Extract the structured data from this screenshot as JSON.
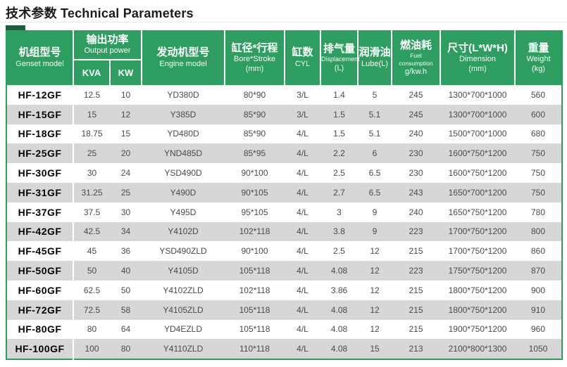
{
  "page_title": "技术参数 Technical Parameters",
  "colors": {
    "header_green": "#2e9e60",
    "corner_dark_green": "#1b5e3a",
    "stripe_gray": "#d7d7d7",
    "cell_text": "#4a4a4a"
  },
  "table": {
    "header": {
      "model": {
        "zh": "机组型号",
        "en": "Genset model"
      },
      "output_power": {
        "zh": "输出功率",
        "en": "Output power",
        "sub_kva": "KVA",
        "sub_kw": "KW"
      },
      "engine": {
        "zh": "发动机型号",
        "en": "Engine model"
      },
      "bore_stroke": {
        "zh": "缸径*行程",
        "en": "Bore*Stroke",
        "unit": "(mm)"
      },
      "cyl": {
        "zh": "缸数",
        "en": "CYL"
      },
      "displacement": {
        "zh": "排气量",
        "en": "Displacement",
        "unit": "(L)"
      },
      "lube": {
        "zh": "润滑油",
        "en": "Lube(L)"
      },
      "fuel": {
        "zh": "燃油耗",
        "en": "Fuel consumption",
        "unit": "g/kw.h"
      },
      "dimension": {
        "zh": "尺寸(L*W*H)",
        "en": "Dimension",
        "unit": "(mm)"
      },
      "weight": {
        "zh": "重量",
        "en": "Weight",
        "unit": "(kg)"
      }
    },
    "rows": [
      {
        "model": "HF-12GF",
        "kva": "12.5",
        "kw": "10",
        "engine": "YD380D",
        "bore_stroke": "80*90",
        "cyl": "3/L",
        "displacement": "1.4",
        "lube": "5",
        "fuel": "245",
        "dimension": "1300*700*1000",
        "weight": "560"
      },
      {
        "model": "HF-15GF",
        "kva": "15",
        "kw": "12",
        "engine": "Y385D",
        "bore_stroke": "85*90",
        "cyl": "3/L",
        "displacement": "1.5",
        "lube": "5.1",
        "fuel": "245",
        "dimension": "1300*700*1000",
        "weight": "600"
      },
      {
        "model": "HF-18GF",
        "kva": "18.75",
        "kw": "15",
        "engine": "YD480D",
        "bore_stroke": "85*90",
        "cyl": "4/L",
        "displacement": "1.5",
        "lube": "5.1",
        "fuel": "240",
        "dimension": "1500*700*1000",
        "weight": "680"
      },
      {
        "model": "HF-25GF",
        "kva": "25",
        "kw": "20",
        "engine": "YND485D",
        "bore_stroke": "85*95",
        "cyl": "4/L",
        "displacement": "2.2",
        "lube": "6",
        "fuel": "230",
        "dimension": "1600*750*1200",
        "weight": "750"
      },
      {
        "model": "HF-30GF",
        "kva": "30",
        "kw": "24",
        "engine": "YSD490D",
        "bore_stroke": "90*100",
        "cyl": "4/L",
        "displacement": "2.5",
        "lube": "6.5",
        "fuel": "230",
        "dimension": "1600*750*1200",
        "weight": "750"
      },
      {
        "model": "HF-31GF",
        "kva": "31.25",
        "kw": "25",
        "engine": "Y490D",
        "bore_stroke": "90*105",
        "cyl": "4/L",
        "displacement": "2.7",
        "lube": "6.5",
        "fuel": "243",
        "dimension": "1650*700*1200",
        "weight": "750"
      },
      {
        "model": "HF-37GF",
        "kva": "37.5",
        "kw": "30",
        "engine": "Y495D",
        "bore_stroke": "95*105",
        "cyl": "4/L",
        "displacement": "3",
        "lube": "9",
        "fuel": "240",
        "dimension": "1650*750*1200",
        "weight": "780"
      },
      {
        "model": "HF-42GF",
        "kva": "42.5",
        "kw": "34",
        "engine": "Y4102D",
        "bore_stroke": "102*118",
        "cyl": "4/L",
        "displacement": "3.8",
        "lube": "9",
        "fuel": "223",
        "dimension": "1700*750*1200",
        "weight": "800"
      },
      {
        "model": "HF-45GF",
        "kva": "45",
        "kw": "36",
        "engine": "YSD490ZLD",
        "bore_stroke": "90*100",
        "cyl": "4/L",
        "displacement": "2.5",
        "lube": "12",
        "fuel": "215",
        "dimension": "1700*750*1200",
        "weight": "860"
      },
      {
        "model": "HF-50GF",
        "kva": "50",
        "kw": "40",
        "engine": "Y4105D",
        "bore_stroke": "105*118",
        "cyl": "4/L",
        "displacement": "4.08",
        "lube": "12",
        "fuel": "223",
        "dimension": "1750*750*1200",
        "weight": "870"
      },
      {
        "model": "HF-60GF",
        "kva": "62.5",
        "kw": "50",
        "engine": "Y4102ZLD",
        "bore_stroke": "102*118",
        "cyl": "4/L",
        "displacement": "3.86",
        "lube": "12",
        "fuel": "215",
        "dimension": "1800*750*1200",
        "weight": "900"
      },
      {
        "model": "HF-72GF",
        "kva": "72.5",
        "kw": "58",
        "engine": "Y4105ZLD",
        "bore_stroke": "105*118",
        "cyl": "4/L",
        "displacement": "4.08",
        "lube": "12",
        "fuel": "215",
        "dimension": "1800*750*1200",
        "weight": "910"
      },
      {
        "model": "HF-80GF",
        "kva": "80",
        "kw": "64",
        "engine": "YD4EZLD",
        "bore_stroke": "105*118",
        "cyl": "4/L",
        "displacement": "4.08",
        "lube": "12",
        "fuel": "215",
        "dimension": "1900*750*1200",
        "weight": "960"
      },
      {
        "model": "HF-100GF",
        "kva": "100",
        "kw": "80",
        "engine": "Y4110ZLD",
        "bore_stroke": "110*118",
        "cyl": "4/L",
        "displacement": "4.08",
        "lube": "15",
        "fuel": "213",
        "dimension": "2100*800*1300",
        "weight": "1050"
      }
    ]
  }
}
